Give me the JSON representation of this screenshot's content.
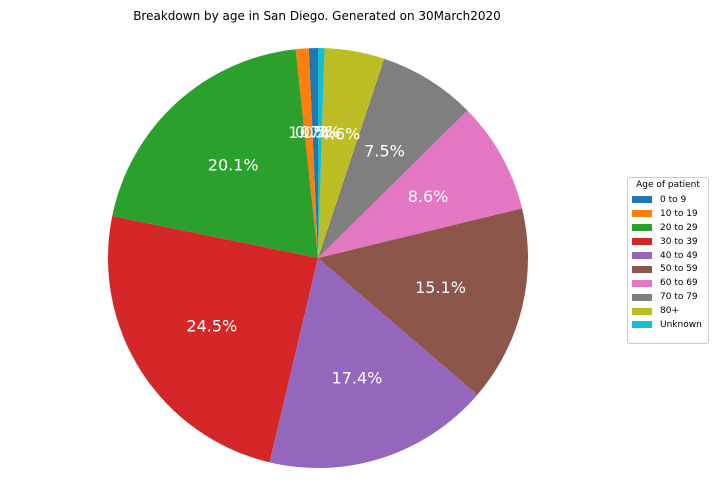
{
  "chart_data": {
    "type": "pie",
    "title": "Breakdown by age in San Diego. Generated on 30March2020",
    "legend_title": "Age of patient",
    "legend_placement": "right",
    "categories": [
      "0 to 9",
      "10 to 19",
      "20 to 29",
      "30 to 39",
      "40 to 49",
      "50 to 59",
      "60 to 69",
      "70 to 79",
      "80+",
      "Unknown"
    ],
    "values": [
      0.7,
      1.0,
      20.1,
      24.5,
      17.4,
      15.1,
      8.6,
      7.5,
      4.6,
      0.5
    ],
    "labels": [
      "0.7%",
      "1.0%",
      "20.1%",
      "24.5%",
      "17.4%",
      "15.1%",
      "8.6%",
      "7.5%",
      "4.6%",
      "0.5%"
    ],
    "colors": [
      "#1f77b4",
      "#ff7f0e",
      "#2ca02c",
      "#d62728",
      "#9467bd",
      "#8c564b",
      "#e377c2",
      "#7f7f7f",
      "#bcbd22",
      "#17becf"
    ],
    "start_angle_deg": 90,
    "direction": "counterclockwise"
  }
}
